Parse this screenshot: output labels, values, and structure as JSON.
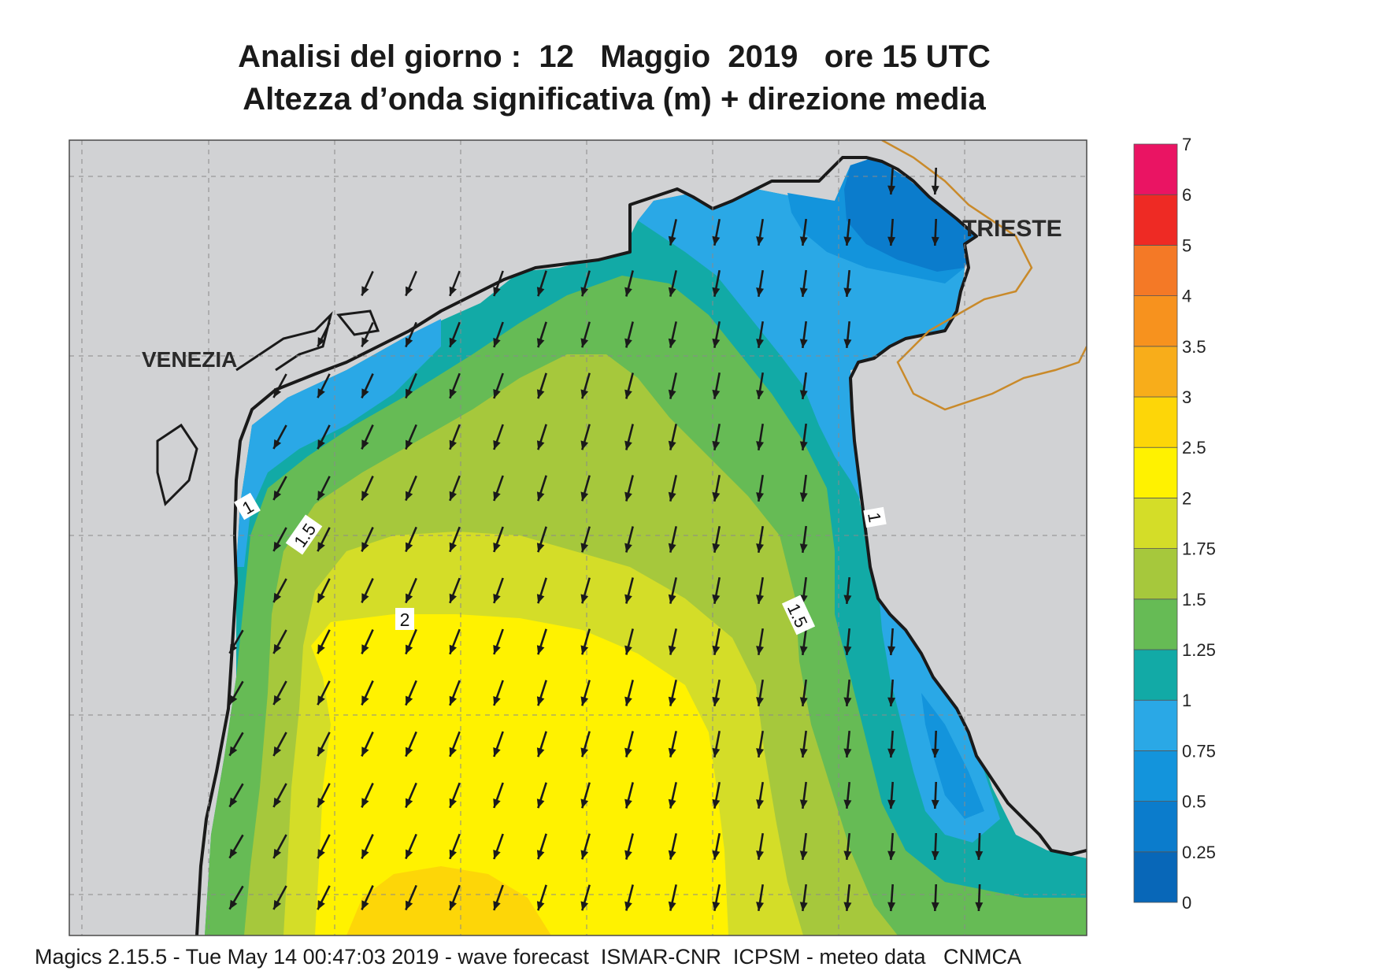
{
  "title": {
    "line1": "Analisi del giorno :  12   Maggio  2019   ore 15 UTC",
    "line2": "Altezza d’onda significativa (m) + direzione media"
  },
  "places": {
    "venezia": "VENEZIA",
    "trieste": "TRIESTE"
  },
  "contour_labels": [
    "1",
    "1.5",
    "2",
    "1.5",
    "1"
  ],
  "legend": {
    "levels": [
      "0",
      "0.25",
      "0.5",
      "0.75",
      "1",
      "1.25",
      "1.5",
      "1.75",
      "2",
      "2.5",
      "3",
      "3.5",
      "4",
      "5",
      "6",
      "7"
    ],
    "colors": [
      "#0867b8",
      "#0b7ccc",
      "#1394dc",
      "#2aa8e6",
      "#12aaa6",
      "#66bb55",
      "#a6c83c",
      "#d4dd28",
      "#fff200",
      "#fdd608",
      "#f8ad1a",
      "#f7921e",
      "#f47926",
      "#ee2a24",
      "#ea1463"
    ]
  },
  "colors": {
    "land": "#d1d2d4",
    "coast": "#1a1a1a",
    "border": "#c98a2a",
    "arrow": "#1a1a1a"
  },
  "footer": "Magics 2.15.5 - Tue May 14 00:47:03 2019 - wave forecast  ISMAR-CNR  ICPSM - meteo data   CNMCA"
}
